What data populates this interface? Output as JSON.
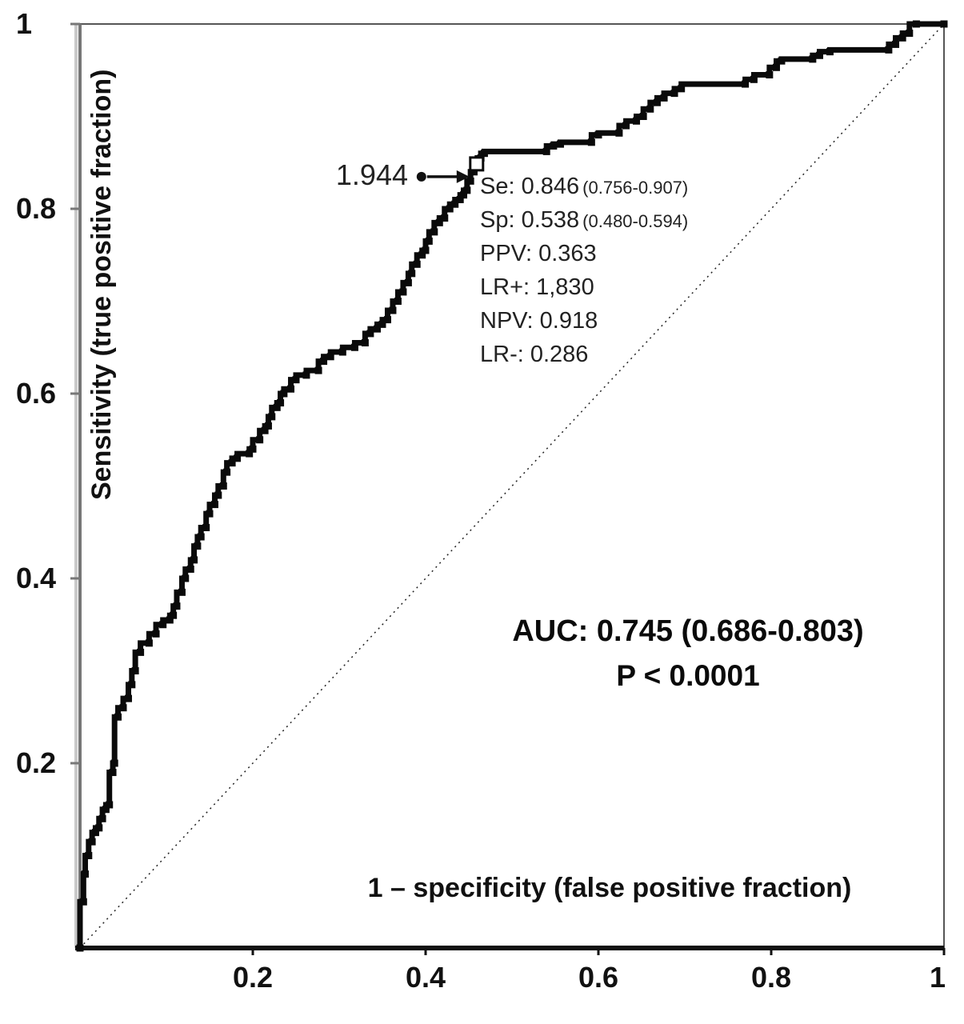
{
  "figure": {
    "background": "#ffffff"
  },
  "colors": {
    "curve": "#0a0a0a",
    "reference_line": "#222222",
    "axis": "#777777",
    "bottom_axis": "#111111",
    "text": "#111111"
  },
  "chart_data": {
    "type": "line",
    "subtype": "roc-step-curve",
    "title": "",
    "xlabel": "1 – specificity (false positive fraction)",
    "ylabel": "Sensitivity (true positive fraction)",
    "xlim": [
      0,
      1
    ],
    "ylim": [
      0,
      1
    ],
    "grid": false,
    "legend": "none",
    "x_ticks": {
      "labels": [
        "0.2",
        "0.4",
        "0.6",
        "0.8",
        "1"
      ],
      "values": [
        0.2,
        0.4,
        0.6,
        0.8,
        1
      ]
    },
    "y_ticks": {
      "labels": [
        "0.2",
        "0.4",
        "0.6",
        "0.8",
        "1"
      ],
      "values": [
        0.2,
        0.4,
        0.6,
        0.8,
        1
      ]
    },
    "reference_line": [
      [
        0,
        0
      ],
      [
        1,
        1
      ]
    ],
    "roc_points": [
      [
        0,
        0
      ],
      [
        0.004,
        0.05
      ],
      [
        0.006,
        0.08
      ],
      [
        0.01,
        0.1
      ],
      [
        0.014,
        0.115
      ],
      [
        0.018,
        0.125
      ],
      [
        0.022,
        0.13
      ],
      [
        0.026,
        0.14
      ],
      [
        0.03,
        0.15
      ],
      [
        0.034,
        0.155
      ],
      [
        0.038,
        0.19
      ],
      [
        0.04,
        0.2
      ],
      [
        0.044,
        0.25
      ],
      [
        0.05,
        0.26
      ],
      [
        0.056,
        0.27
      ],
      [
        0.06,
        0.285
      ],
      [
        0.064,
        0.3
      ],
      [
        0.07,
        0.32
      ],
      [
        0.08,
        0.33
      ],
      [
        0.088,
        0.34
      ],
      [
        0.096,
        0.35
      ],
      [
        0.104,
        0.355
      ],
      [
        0.108,
        0.36
      ],
      [
        0.112,
        0.37
      ],
      [
        0.118,
        0.385
      ],
      [
        0.122,
        0.4
      ],
      [
        0.128,
        0.41
      ],
      [
        0.132,
        0.42
      ],
      [
        0.136,
        0.435
      ],
      [
        0.14,
        0.445
      ],
      [
        0.146,
        0.455
      ],
      [
        0.15,
        0.47
      ],
      [
        0.156,
        0.48
      ],
      [
        0.16,
        0.49
      ],
      [
        0.166,
        0.5
      ],
      [
        0.17,
        0.515
      ],
      [
        0.176,
        0.525
      ],
      [
        0.182,
        0.53
      ],
      [
        0.196,
        0.535
      ],
      [
        0.2,
        0.54
      ],
      [
        0.208,
        0.55
      ],
      [
        0.214,
        0.56
      ],
      [
        0.218,
        0.565
      ],
      [
        0.222,
        0.575
      ],
      [
        0.228,
        0.585
      ],
      [
        0.232,
        0.59
      ],
      [
        0.236,
        0.6
      ],
      [
        0.244,
        0.605
      ],
      [
        0.25,
        0.615
      ],
      [
        0.262,
        0.62
      ],
      [
        0.276,
        0.625
      ],
      [
        0.282,
        0.635
      ],
      [
        0.29,
        0.64
      ],
      [
        0.304,
        0.645
      ],
      [
        0.318,
        0.65
      ],
      [
        0.33,
        0.655
      ],
      [
        0.336,
        0.665
      ],
      [
        0.344,
        0.67
      ],
      [
        0.35,
        0.675
      ],
      [
        0.356,
        0.68
      ],
      [
        0.362,
        0.69
      ],
      [
        0.368,
        0.7
      ],
      [
        0.374,
        0.71
      ],
      [
        0.38,
        0.72
      ],
      [
        0.384,
        0.73
      ],
      [
        0.39,
        0.74
      ],
      [
        0.396,
        0.75
      ],
      [
        0.4,
        0.755
      ],
      [
        0.404,
        0.765
      ],
      [
        0.41,
        0.775
      ],
      [
        0.416,
        0.785
      ],
      [
        0.422,
        0.79
      ],
      [
        0.428,
        0.8
      ],
      [
        0.434,
        0.805
      ],
      [
        0.44,
        0.81
      ],
      [
        0.444,
        0.815
      ],
      [
        0.448,
        0.82
      ],
      [
        0.452,
        0.83
      ],
      [
        0.456,
        0.84
      ],
      [
        0.46,
        0.846
      ],
      [
        0.464,
        0.855
      ],
      [
        0.468,
        0.86
      ],
      [
        0.54,
        0.862
      ],
      [
        0.548,
        0.868
      ],
      [
        0.556,
        0.87
      ],
      [
        0.592,
        0.872
      ],
      [
        0.6,
        0.88
      ],
      [
        0.624,
        0.882
      ],
      [
        0.632,
        0.89
      ],
      [
        0.644,
        0.895
      ],
      [
        0.652,
        0.9
      ],
      [
        0.66,
        0.908
      ],
      [
        0.668,
        0.915
      ],
      [
        0.676,
        0.92
      ],
      [
        0.688,
        0.925
      ],
      [
        0.696,
        0.93
      ],
      [
        0.77,
        0.935
      ],
      [
        0.78,
        0.94
      ],
      [
        0.798,
        0.945
      ],
      [
        0.806,
        0.953
      ],
      [
        0.812,
        0.96
      ],
      [
        0.848,
        0.962
      ],
      [
        0.856,
        0.966
      ],
      [
        0.868,
        0.97
      ],
      [
        0.936,
        0.972
      ],
      [
        0.944,
        0.978
      ],
      [
        0.952,
        0.985
      ],
      [
        0.96,
        0.99
      ],
      [
        0.968,
        1
      ],
      [
        1,
        1
      ]
    ],
    "annotations": {
      "cutoff_label": "1.944",
      "cutoff_point": [
        0.46,
        0.846
      ],
      "stats": [
        {
          "main": "Se: 0.846",
          "ci": "(0.756-0.907)"
        },
        {
          "main": "Sp: 0.538",
          "ci": "(0.480-0.594)"
        },
        {
          "main": "PPV: 0.363",
          "ci": ""
        },
        {
          "main": "LR+: 1,830",
          "ci": ""
        },
        {
          "main": "NPV: 0.918",
          "ci": ""
        },
        {
          "main": "LR-: 0.286",
          "ci": ""
        }
      ],
      "auc_line": "AUC: 0.745 (0.686-0.803)",
      "p_line": "P < 0.0001"
    }
  }
}
